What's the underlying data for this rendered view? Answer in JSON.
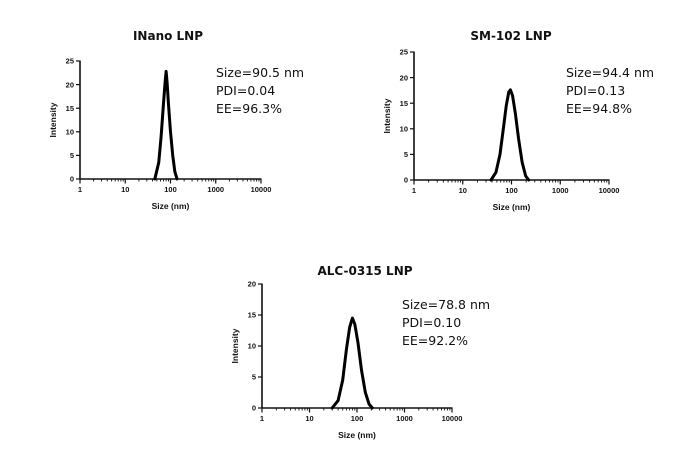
{
  "chart_data": [
    {
      "type": "line",
      "title": "INano LNP",
      "xlabel": "Size (nm)",
      "ylabel": "Intensity",
      "xscale": "log",
      "xlim": [
        1,
        10000
      ],
      "ylim": [
        0,
        25
      ],
      "xticks": [
        "1",
        "10",
        "100",
        "1000",
        "10000"
      ],
      "yticks": [
        "0",
        "5",
        "10",
        "15",
        "20",
        "25"
      ],
      "annotations": [
        "Size=90.5 nm",
        "PDI=0.04",
        "EE=96.3%"
      ],
      "grid": false,
      "series": [
        {
          "x": [
            45,
            55,
            62,
            70,
            76,
            80,
            84,
            90,
            100,
            112,
            125,
            140
          ],
          "y": [
            0,
            3.5,
            9,
            16,
            20.5,
            22.8,
            20.5,
            16,
            10,
            5,
            1.5,
            0
          ]
        }
      ]
    },
    {
      "type": "line",
      "title": "SM-102 LNP",
      "xlabel": "Size (nm)",
      "ylabel": "Intensity",
      "xscale": "log",
      "xlim": [
        1,
        10000
      ],
      "ylim": [
        0,
        25
      ],
      "xticks": [
        "1",
        "10",
        "100",
        "1000",
        "10000"
      ],
      "yticks": [
        "0",
        "5",
        "10",
        "15",
        "20",
        "25"
      ],
      "annotations": [
        "Size=94.4 nm",
        "PDI=0.13",
        "EE=94.8%"
      ],
      "grid": false,
      "series": [
        {
          "x": [
            38,
            48,
            58,
            68,
            78,
            88,
            95,
            105,
            120,
            140,
            165,
            195,
            225
          ],
          "y": [
            0,
            1.5,
            5,
            10,
            14.5,
            17.2,
            17.6,
            16.5,
            13,
            8,
            3.5,
            0.8,
            0
          ]
        }
      ]
    },
    {
      "type": "line",
      "title": "ALC-0315 LNP",
      "xlabel": "Size (nm)",
      "ylabel": "Intensity",
      "xscale": "log",
      "xlim": [
        1,
        10000
      ],
      "ylim": [
        0,
        20
      ],
      "xticks": [
        "1",
        "10",
        "100",
        "1000",
        "10000"
      ],
      "yticks": [
        "0",
        "5",
        "10",
        "15",
        "20"
      ],
      "annotations": [
        "Size=78.8 nm",
        "PDI=0.10",
        "EE=92.2%"
      ],
      "grid": false,
      "series": [
        {
          "x": [
            30,
            40,
            50,
            60,
            70,
            80,
            90,
            105,
            125,
            150,
            180,
            210
          ],
          "y": [
            0,
            1.2,
            4.5,
            9.5,
            13,
            14.5,
            13.5,
            10.5,
            6,
            2.5,
            0.6,
            0
          ]
        }
      ]
    }
  ]
}
